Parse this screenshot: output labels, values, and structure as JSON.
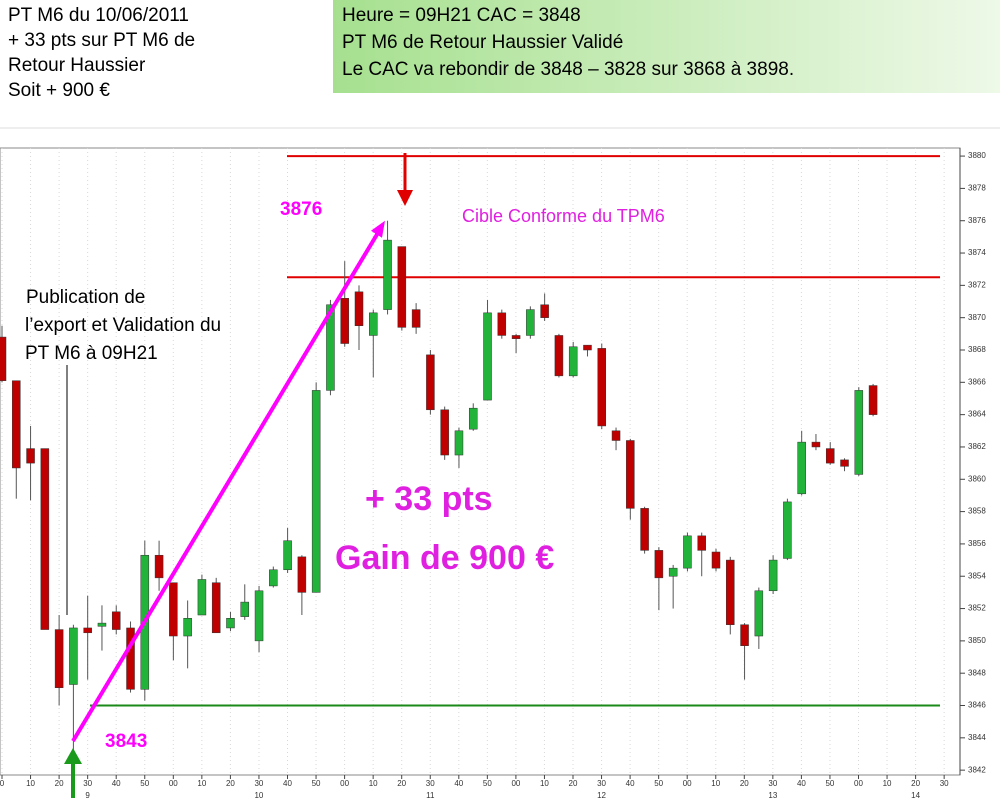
{
  "chart_data": {
    "type": "candlestick",
    "header_left": [
      "PT M6 du 10/06/2011",
      "+ 33 pts sur PT M6 de",
      "Retour Haussier",
      "Soit + 900 €"
    ],
    "header_right": [
      "Heure = 09H21  CAC = 3848",
      "PT M6 de Retour Haussier Validé",
      "Le CAC va rebondir de 3848 – 3828 sur  3868 à 3898."
    ],
    "annotation_publication": [
      "Publication de",
      "l’export et Validation du",
      "PT M6 à 09H21"
    ],
    "annotation_target": "Cible Conforme du TPM6",
    "annotation_points": "+ 33 pts",
    "annotation_gain": "Gain de 900 €",
    "move": {
      "from": 3843,
      "to": 3876,
      "color": "#ff00ff"
    },
    "levels": [
      {
        "value": 3880,
        "color": "#e00000"
      },
      {
        "value": 3872.5,
        "color": "#e00000"
      },
      {
        "value": 3846,
        "color": "#1a8a1a"
      }
    ],
    "up_color": "#22b33a",
    "down_color": "#c00000",
    "open": [
      3868.8,
      3866.1,
      3861.9,
      3861.9,
      3850.7,
      3847.3,
      3850.8,
      3850.9,
      3851.8,
      3850.8,
      3847.0,
      3855.3,
      3853.6,
      3850.3,
      3851.6,
      3853.6,
      3850.8,
      3851.5,
      3850.0,
      3853.4,
      3854.4,
      3855.2,
      3853.0,
      3865.5,
      3871.2,
      3871.6,
      3868.9,
      3870.5,
      3874.4,
      3870.5,
      3867.7,
      3864.3,
      3861.5,
      3863.1,
      3864.9,
      3870.3,
      3868.9,
      3868.9,
      3870.8,
      3868.9,
      3866.4,
      3868.3,
      3868.1,
      3863.0,
      3862.4,
      3858.2,
      3855.6,
      3854.0,
      3854.5,
      3856.5,
      3855.5,
      3855.0,
      3851.0,
      3850.3,
      3853.1,
      3855.1,
      3859.1,
      3862.3,
      3861.9,
      3861.2,
      3860.3,
      3865.8
    ],
    "close": [
      3866.1,
      3860.7,
      3861.0,
      3850.7,
      3847.1,
      3850.8,
      3850.5,
      3851.1,
      3850.7,
      3847.0,
      3855.3,
      3853.9,
      3850.3,
      3851.4,
      3853.8,
      3850.5,
      3851.4,
      3852.4,
      3853.1,
      3854.4,
      3856.2,
      3853.0,
      3865.5,
      3870.8,
      3868.4,
      3869.5,
      3870.3,
      3874.8,
      3869.4,
      3869.4,
      3864.3,
      3861.5,
      3863.0,
      3864.4,
      3870.3,
      3868.9,
      3868.7,
      3870.5,
      3870.0,
      3866.4,
      3868.2,
      3868.0,
      3863.3,
      3862.4,
      3858.2,
      3855.6,
      3853.9,
      3854.5,
      3856.5,
      3855.6,
      3854.5,
      3851.0,
      3849.7,
      3853.1,
      3855.0,
      3858.6,
      3862.3,
      3862.0,
      3861.0,
      3860.8,
      3865.5,
      3864.0
    ],
    "high": [
      3869.5,
      3866.1,
      3863.3,
      3861.9,
      3851.6,
      3851.0,
      3852.8,
      3852.2,
      3852.2,
      3851.2,
      3856.2,
      3856.2,
      3853.6,
      3852.5,
      3854.1,
      3853.9,
      3851.8,
      3853.5,
      3853.4,
      3854.6,
      3857.0,
      3855.3,
      3866.0,
      3871.1,
      3873.5,
      3872.0,
      3870.5,
      3876.0,
      3874.4,
      3870.9,
      3868.0,
      3864.5,
      3863.2,
      3864.7,
      3871.1,
      3870.5,
      3869.0,
      3870.7,
      3871.5,
      3869.0,
      3868.5,
      3868.3,
      3868.4,
      3863.2,
      3862.5,
      3858.3,
      3855.8,
      3854.7,
      3856.7,
      3856.7,
      3855.7,
      3855.2,
      3851.1,
      3853.3,
      3855.3,
      3858.8,
      3863.0,
      3862.8,
      3862.3,
      3861.3,
      3865.7,
      3865.9
    ],
    "low": [
      3866.0,
      3858.8,
      3858.7,
      3850.7,
      3846.0,
      3843.0,
      3847.6,
      3849.4,
      3850.4,
      3846.8,
      3846.3,
      3853.1,
      3848.8,
      3848.3,
      3851.6,
      3850.5,
      3850.6,
      3851.3,
      3849.3,
      3853.3,
      3854.2,
      3851.6,
      3853.0,
      3865.2,
      3868.2,
      3868.0,
      3866.3,
      3870.2,
      3869.2,
      3869.0,
      3864.0,
      3861.2,
      3860.7,
      3863.0,
      3864.9,
      3868.7,
      3867.8,
      3868.7,
      3869.8,
      3866.3,
      3866.3,
      3867.6,
      3863.1,
      3861.8,
      3857.5,
      3855.4,
      3851.9,
      3852.0,
      3854.3,
      3854.0,
      3854.3,
      3850.4,
      3847.6,
      3849.5,
      3852.9,
      3855.0,
      3859.0,
      3861.8,
      3860.9,
      3860.5,
      3860.2,
      3863.9
    ],
    "ylim": [
      3841.7,
      3880.5
    ],
    "yticks": [
      3842,
      3844,
      3846,
      3848,
      3850,
      3852,
      3854,
      3856,
      3858,
      3860,
      3862,
      3864,
      3866,
      3868,
      3870,
      3872,
      3874,
      3876,
      3878,
      3880
    ],
    "xtick_labels": [
      "0",
      "10",
      "20",
      "30",
      "40",
      "50",
      "00",
      "10",
      "20",
      "30",
      "40",
      "50",
      "00",
      "10",
      "20",
      "30",
      "40",
      "50",
      "00",
      "10",
      "20",
      "30",
      "40",
      "50",
      "00",
      "10",
      "20",
      "30",
      "40",
      "50",
      "00",
      "10",
      "20",
      "30"
    ],
    "hour_labels": [
      "9",
      "10",
      "11",
      "12",
      "13",
      "14"
    ],
    "grid": true
  }
}
